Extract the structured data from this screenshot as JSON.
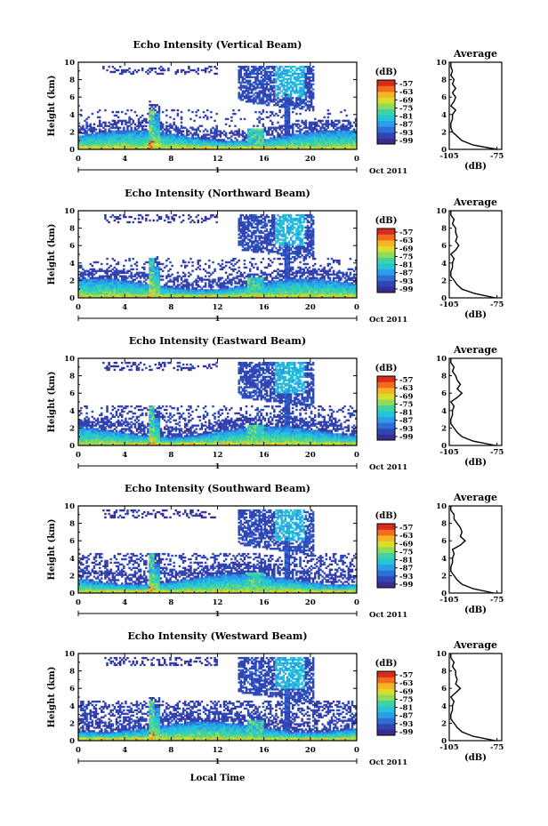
{
  "figure": {
    "x_label": "Local Time",
    "date_label": "Oct 2011",
    "day_marker": "1"
  },
  "colorbar": {
    "unit": "(dB)",
    "ticks": [
      "-57",
      "-63",
      "-69",
      "-75",
      "-81",
      "-87",
      "-93",
      "-99"
    ],
    "colors": [
      "#3a2d8f",
      "#3145b4",
      "#2d6fd6",
      "#2a9ee8",
      "#25c4d9",
      "#3fd3a1",
      "#8fdc5a",
      "#d9de2c",
      "#f7b422",
      "#f56b1e",
      "#d92a1e"
    ]
  },
  "chart_data": [
    {
      "type": "heatmap",
      "title": "Echo Intensity (Vertical Beam)",
      "ylabel": "Height (km)",
      "xlabel": "Local Time",
      "x_unit": "hour",
      "xlim": [
        0,
        24
      ],
      "ylim": [
        0,
        10
      ],
      "xticks": [
        "0",
        "4",
        "8",
        "12",
        "16",
        "20",
        "0"
      ],
      "yticks": [
        "0",
        "2",
        "4",
        "6",
        "8",
        "10"
      ],
      "colorscale": {
        "unit": "dB",
        "min": -99,
        "max": -57
      },
      "profile": {
        "title": "Average",
        "xlabel": "(dB)",
        "xlim": [
          -105,
          -72
        ],
        "xticks": [
          "-105",
          "-75"
        ],
        "height_km": [
          0,
          0.5,
          1,
          1.5,
          2,
          2.5,
          3,
          3.5,
          4,
          4.5,
          5,
          5.5,
          6,
          6.5,
          7,
          7.5,
          8,
          8.5,
          9,
          9.5,
          10
        ],
        "db": [
          -75,
          -90,
          -97,
          -100,
          -103,
          -104,
          -104,
          -103,
          -103,
          -101,
          -104,
          -102,
          -101,
          -103,
          -101,
          -103,
          -102,
          -104,
          -103,
          -104,
          -104
        ]
      }
    },
    {
      "type": "heatmap",
      "title": "Echo Intensity (Northward Beam)",
      "ylabel": "Height (km)",
      "xlabel": "Local Time",
      "x_unit": "hour",
      "xlim": [
        0,
        24
      ],
      "ylim": [
        0,
        10
      ],
      "xticks": [
        "0",
        "4",
        "8",
        "12",
        "16",
        "20",
        "0"
      ],
      "yticks": [
        "0",
        "2",
        "4",
        "6",
        "8",
        "10"
      ],
      "colorscale": {
        "unit": "dB",
        "min": -99,
        "max": -57
      },
      "profile": {
        "title": "Average",
        "xlabel": "(dB)",
        "xlim": [
          -105,
          -72
        ],
        "xticks": [
          "-105",
          "-75"
        ],
        "height_km": [
          0,
          0.5,
          1,
          1.5,
          2,
          2.5,
          3,
          3.5,
          4,
          4.5,
          5,
          5.5,
          6,
          6.5,
          7,
          7.5,
          8,
          8.5,
          9,
          9.5,
          10
        ],
        "db": [
          -76,
          -89,
          -97,
          -100,
          -102,
          -104,
          -104,
          -103,
          -103,
          -102,
          -104,
          -101,
          -99,
          -101,
          -100,
          -101,
          -101,
          -103,
          -102,
          -104,
          -104
        ]
      }
    },
    {
      "type": "heatmap",
      "title": "Echo Intensity (Eastward Beam)",
      "ylabel": "Height (km)",
      "xlabel": "Local Time",
      "x_unit": "hour",
      "xlim": [
        0,
        24
      ],
      "ylim": [
        0,
        10
      ],
      "xticks": [
        "0",
        "4",
        "8",
        "12",
        "16",
        "20",
        "0"
      ],
      "yticks": [
        "0",
        "2",
        "4",
        "6",
        "8",
        "10"
      ],
      "colorscale": {
        "unit": "dB",
        "min": -99,
        "max": -57
      },
      "profile": {
        "title": "Average",
        "xlabel": "(dB)",
        "xlim": [
          -105,
          -72
        ],
        "xticks": [
          "-105",
          "-75"
        ],
        "height_km": [
          0,
          0.5,
          1,
          1.5,
          2,
          2.5,
          3,
          3.5,
          4,
          4.5,
          5,
          5.5,
          6,
          6.5,
          7,
          7.5,
          8,
          8.5,
          9,
          9.5,
          10
        ],
        "db": [
          -76,
          -90,
          -97,
          -100,
          -102,
          -104,
          -104,
          -103,
          -103,
          -102,
          -104,
          -100,
          -97,
          -100,
          -98,
          -100,
          -101,
          -103,
          -102,
          -104,
          -104
        ]
      }
    },
    {
      "type": "heatmap",
      "title": "Echo Intensity (Southward Beam)",
      "ylabel": "Height (km)",
      "xlabel": "Local Time",
      "x_unit": "hour",
      "xlim": [
        0,
        24
      ],
      "ylim": [
        0,
        10
      ],
      "xticks": [
        "0",
        "4",
        "8",
        "12",
        "16",
        "20",
        "0"
      ],
      "yticks": [
        "0",
        "2",
        "4",
        "6",
        "8",
        "10"
      ],
      "colorscale": {
        "unit": "dB",
        "min": -99,
        "max": -57
      },
      "profile": {
        "title": "Average",
        "xlabel": "(dB)",
        "xlim": [
          -105,
          -72
        ],
        "xticks": [
          "-105",
          "-75"
        ],
        "height_km": [
          0,
          0.5,
          1,
          1.5,
          2,
          2.5,
          3,
          3.5,
          4,
          4.5,
          5,
          5.5,
          6,
          6.5,
          7,
          7.5,
          8,
          8.5,
          9,
          9.5,
          10
        ],
        "db": [
          -77,
          -90,
          -97,
          -100,
          -102,
          -104,
          -104,
          -103,
          -103,
          -102,
          -103,
          -98,
          -95,
          -98,
          -97,
          -98,
          -100,
          -102,
          -102,
          -104,
          -104
        ]
      }
    },
    {
      "type": "heatmap",
      "title": "Echo Intensity (Westward Beam)",
      "ylabel": "Height (km)",
      "xlabel": "Local Time",
      "x_unit": "hour",
      "xlim": [
        0,
        24
      ],
      "ylim": [
        0,
        10
      ],
      "xticks": [
        "0",
        "4",
        "8",
        "12",
        "16",
        "20",
        "0"
      ],
      "yticks": [
        "0",
        "2",
        "4",
        "6",
        "8",
        "10"
      ],
      "colorscale": {
        "unit": "dB",
        "min": -99,
        "max": -57
      },
      "profile": {
        "title": "Average",
        "xlabel": "(dB)",
        "xlim": [
          -105,
          -72
        ],
        "xticks": [
          "-105",
          "-75"
        ],
        "height_km": [
          0,
          0.5,
          1,
          1.5,
          2,
          2.5,
          3,
          3.5,
          4,
          4.5,
          5,
          5.5,
          6,
          6.5,
          7,
          7.5,
          8,
          8.5,
          9,
          9.5,
          10
        ],
        "db": [
          -76,
          -90,
          -97,
          -100,
          -102,
          -104,
          -104,
          -103,
          -103,
          -102,
          -104,
          -101,
          -98,
          -101,
          -100,
          -101,
          -101,
          -103,
          -102,
          -104,
          -104
        ]
      }
    }
  ]
}
